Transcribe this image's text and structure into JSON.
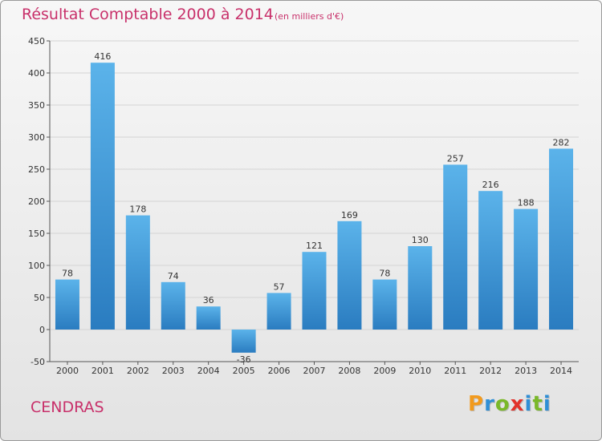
{
  "header": {
    "title": "Résultat Comptable 2000 à 2014",
    "subtitle": "(en milliers d'€)"
  },
  "footer": {
    "town": "CENDRAS",
    "logo_letters": [
      {
        "char": "P",
        "color": "#f29a1d"
      },
      {
        "char": "r",
        "color": "#2f8fd6"
      },
      {
        "char": "o",
        "color": "#7ab829"
      },
      {
        "char": "x",
        "color": "#e2322b"
      },
      {
        "char": "i",
        "color": "#2f8fd6"
      },
      {
        "char": "t",
        "color": "#7ab829"
      },
      {
        "char": "i",
        "color": "#2f8fd6"
      }
    ]
  },
  "colors": {
    "accent": "#c8306a",
    "bar_top": "#5bb3ea",
    "bar_bottom": "#2a7cc0",
    "grid": "#d4d4d4"
  },
  "chart_data": {
    "type": "bar",
    "categories": [
      "2000",
      "2001",
      "2002",
      "2003",
      "2004",
      "2005",
      "2006",
      "2007",
      "2008",
      "2009",
      "2010",
      "2011",
      "2012",
      "2013",
      "2014"
    ],
    "values": [
      78,
      416,
      178,
      74,
      36,
      -36,
      57,
      121,
      169,
      78,
      130,
      257,
      216,
      188,
      282
    ],
    "y_ticks": [
      -50,
      0,
      50,
      100,
      150,
      200,
      250,
      300,
      350,
      400,
      450
    ],
    "ylim": [
      -50,
      450
    ],
    "grid": true
  }
}
